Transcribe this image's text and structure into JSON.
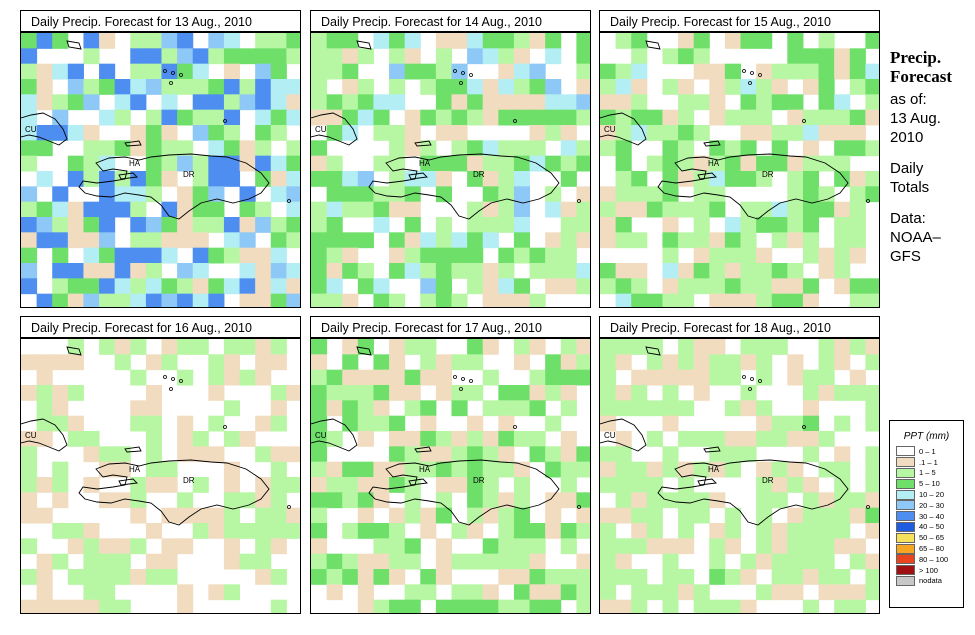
{
  "panels": [
    {
      "title": "Daily Precip. Forecast for  13 Aug., 2010",
      "seed": 13,
      "wet_level": 2.4
    },
    {
      "title": "Daily Precip. Forecast for  14 Aug., 2010",
      "seed": 14,
      "wet_level": 1.8
    },
    {
      "title": "Daily Precip. Forecast for  15 Aug., 2010",
      "seed": 15,
      "wet_level": 1.6
    },
    {
      "title": "Daily Precip. Forecast for  16 Aug., 2010",
      "seed": 16,
      "wet_level": 0.9
    },
    {
      "title": "Daily Precip. Forecast for  17 Aug., 2010",
      "seed": 17,
      "wet_level": 1.5
    },
    {
      "title": "Daily Precip. Forecast for  18 Aug., 2010",
      "seed": 18,
      "wet_level": 1.2
    }
  ],
  "map_labels": {
    "cu": "CU",
    "ha": "HA",
    "dr": "DR"
  },
  "side": {
    "title_line1": "Precip.",
    "title_line2": "Forecast",
    "as_of": "as of:",
    "date_line1": "13 Aug.",
    "date_line2": "2010",
    "daily_line1": "Daily",
    "daily_line2": "Totals",
    "data_line1": "Data:",
    "data_line2": "NOAA–",
    "data_line3": "GFS"
  },
  "legend": {
    "title": "PPT (mm)",
    "items": [
      {
        "label": "0 – 1",
        "color": "#ffffff"
      },
      {
        "label": ".1 – 1",
        "color": "#f1dcc0"
      },
      {
        "label": "1 – 5",
        "color": "#b7f7a3"
      },
      {
        "label": "5 – 10",
        "color": "#6ee06a"
      },
      {
        "label": "10 – 20",
        "color": "#b2eef4"
      },
      {
        "label": "20 – 30",
        "color": "#8ec8f6"
      },
      {
        "label": "30 – 40",
        "color": "#4d8ef0"
      },
      {
        "label": "40 – 50",
        "color": "#1e5ce0"
      },
      {
        "label": "50 – 65",
        "color": "#f6e15a"
      },
      {
        "label": "65 – 80",
        "color": "#f5a623"
      },
      {
        "label": "80 – 100",
        "color": "#e8441e"
      },
      {
        "label": "> 100",
        "color": "#a11010"
      },
      {
        "label": "nodata",
        "color": "#c8c8c8"
      }
    ]
  }
}
